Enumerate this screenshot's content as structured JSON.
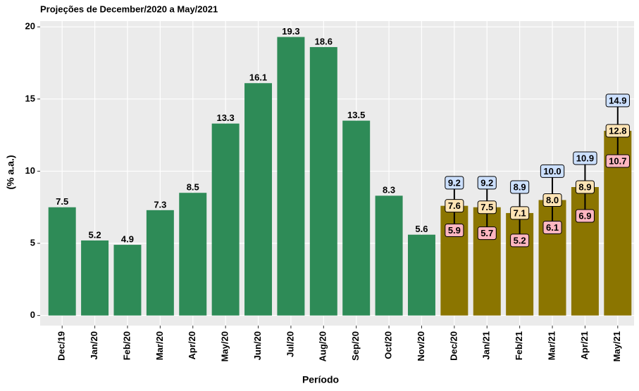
{
  "chart_data": {
    "type": "bar",
    "title": "Projeções de December/2020 a May/2021",
    "x_label": "Período",
    "y_label": "(% a.a.)",
    "categories": [
      "Dec/19",
      "Jan/20",
      "Feb/20",
      "Mar/20",
      "Apr/20",
      "May/20",
      "Jun/20",
      "Jul/20",
      "Aug/20",
      "Sep/20",
      "Oct/20",
      "Nov/20",
      "Dec/20",
      "Jan/21",
      "Feb/21",
      "Mar/21",
      "Apr/21",
      "May/21"
    ],
    "series": [
      {
        "color": "#2e8b57",
        "values": [
          7.5,
          5.2,
          4.9,
          7.3,
          8.5,
          13.3,
          16.1,
          19.3,
          18.6,
          13.5,
          8.3,
          5.6,
          null,
          null,
          null,
          null,
          null,
          null
        ]
      },
      {
        "color": "#8b7500",
        "label_color": "#ffe4b5",
        "values": [
          null,
          null,
          null,
          null,
          null,
          null,
          null,
          null,
          null,
          null,
          null,
          null,
          7.6,
          7.5,
          7.1,
          8.0,
          8.9,
          12.8
        ],
        "value_labels": [
          null,
          null,
          null,
          null,
          null,
          null,
          null,
          null,
          null,
          null,
          null,
          null,
          "7.6",
          "7.5",
          "7.1",
          "8.0",
          "8.9",
          "12.8"
        ],
        "low_color": "#ffb6c1",
        "low": [
          null,
          null,
          null,
          null,
          null,
          null,
          null,
          null,
          null,
          null,
          null,
          null,
          5.9,
          5.7,
          5.2,
          6.1,
          6.9,
          10.7
        ],
        "high_color": "#cce0ff",
        "high": [
          null,
          null,
          null,
          null,
          null,
          null,
          null,
          null,
          null,
          null,
          null,
          null,
          9.2,
          9.2,
          8.9,
          10.0,
          10.9,
          14.9
        ],
        "high_labels": [
          null,
          null,
          null,
          null,
          null,
          null,
          null,
          null,
          null,
          null,
          null,
          null,
          "9.2",
          "9.2",
          "8.9",
          "10.0",
          "10.9",
          "14.9"
        ]
      }
    ],
    "ylim": [
      -0.7,
      20.4
    ],
    "yticks": [
      0,
      5,
      10,
      15,
      20
    ],
    "grid": true
  }
}
